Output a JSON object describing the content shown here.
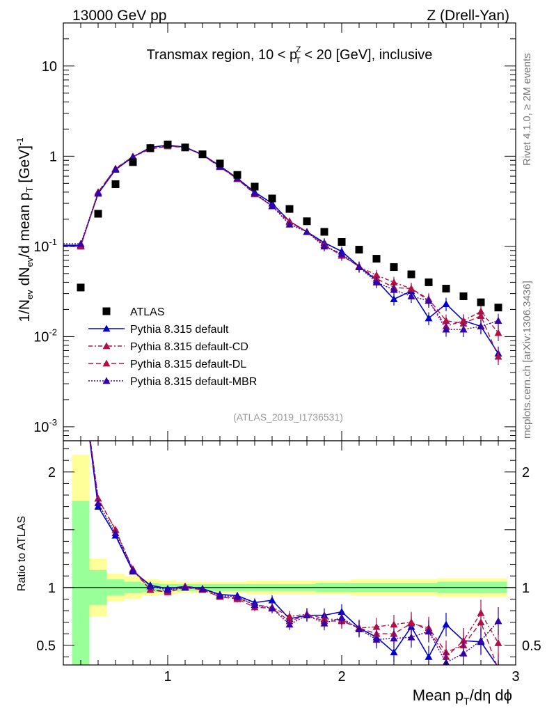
{
  "header": {
    "left": "13000 GeV pp",
    "right": "Z (Drell-Yan)"
  },
  "side_labels": {
    "rivet": "Rivet 4.1.0, ≥ 2M events",
    "mcplots": "mcplots.cern.ch [arXiv:1306.3436]"
  },
  "colors": {
    "data": "#000000",
    "default": "#0000cc",
    "cd": "#b0104a",
    "dl": "#b0104a",
    "mbr": "#3300aa",
    "band_outer": "#ffff99",
    "band_inner": "#99ff99"
  },
  "chart_data": {
    "type": "scatter",
    "title": "Transmax region, 10 < p_T^Z < 20 [GeV], inclusive",
    "watermark": "(ATLAS_2019_I1736531)",
    "xlabel": "Mean p_T/dη dφ",
    "ylabel_main": "1/N_ev dN_ev/d mean p_T [GeV]^-1",
    "ylabel_ratio": "Ratio to ATLAS",
    "xlim": [
      0.4,
      3.0
    ],
    "ylim_main": [
      0.0007,
      30
    ],
    "ylim_ratio": [
      0.33,
      2.27
    ],
    "x_ticks": [
      "1",
      "2",
      "3"
    ],
    "y_ticks_main": [
      "10",
      "1",
      "10^-1",
      "10^-2",
      "10^-3"
    ],
    "y_ticks_ratio": [
      "2",
      "1",
      "0.5"
    ],
    "x": [
      0.5,
      0.6,
      0.7,
      0.8,
      0.9,
      1.0,
      1.1,
      1.2,
      1.3,
      1.4,
      1.5,
      1.6,
      1.7,
      1.8,
      1.9,
      2.0,
      2.1,
      2.2,
      2.3,
      2.4,
      2.5,
      2.6,
      2.7,
      2.8,
      2.9
    ],
    "legend": [
      "ATLAS",
      "Pythia 8.315 default",
      "Pythia 8.315 default-CD",
      "Pythia 8.315 default-DL",
      "Pythia 8.315 default-MBR"
    ],
    "series": [
      {
        "name": "ATLAS",
        "key": "data",
        "values": [
          0.035,
          0.23,
          0.49,
          0.86,
          1.23,
          1.35,
          1.25,
          1.05,
          0.83,
          0.62,
          0.46,
          0.34,
          0.26,
          0.19,
          0.145,
          0.112,
          0.092,
          0.073,
          0.059,
          0.049,
          0.04,
          0.034,
          0.028,
          0.024,
          0.021
        ]
      },
      {
        "name": "Pythia 8.315 default",
        "key": "default",
        "values": [
          0.103,
          0.385,
          0.71,
          0.98,
          1.25,
          1.33,
          1.26,
          1.04,
          0.78,
          0.57,
          0.4,
          0.3,
          0.19,
          0.145,
          0.11,
          0.088,
          0.06,
          0.042,
          0.026,
          0.032,
          0.016,
          0.023,
          0.015,
          0.013,
          0.0065
        ]
      },
      {
        "name": "Pythia 8.315 default-CD",
        "key": "cd",
        "values": [
          0.1,
          0.4,
          0.73,
          0.99,
          1.2,
          1.3,
          1.26,
          1.03,
          0.76,
          0.56,
          0.38,
          0.28,
          0.19,
          0.145,
          0.105,
          0.08,
          0.06,
          0.048,
          0.04,
          0.034,
          0.025,
          0.013,
          0.015,
          0.019,
          0.011
        ]
      },
      {
        "name": "Pythia 8.315 default-DL",
        "key": "dl",
        "values": [
          0.1,
          0.4,
          0.73,
          0.99,
          1.2,
          1.29,
          1.25,
          1.03,
          0.76,
          0.56,
          0.38,
          0.28,
          0.185,
          0.145,
          0.103,
          0.079,
          0.06,
          0.044,
          0.035,
          0.034,
          0.026,
          0.015,
          0.014,
          0.017,
          0.006
        ]
      },
      {
        "name": "Pythia 8.315 default-MBR",
        "key": "mbr",
        "values": [
          0.107,
          0.39,
          0.72,
          0.99,
          1.24,
          1.33,
          1.25,
          1.04,
          0.77,
          0.57,
          0.39,
          0.28,
          0.175,
          0.145,
          0.1,
          0.083,
          0.059,
          0.04,
          0.033,
          0.028,
          0.025,
          0.012,
          0.012,
          0.013,
          0.015
        ]
      }
    ],
    "ratio": [
      {
        "key": "default",
        "values": [
          2.9,
          1.7,
          1.45,
          1.14,
          1.02,
          0.99,
          1.01,
          0.99,
          0.94,
          0.93,
          0.87,
          0.89,
          0.73,
          0.76,
          0.76,
          0.79,
          0.65,
          0.57,
          0.44,
          0.66,
          0.4,
          0.68,
          0.54,
          0.53,
          0.31
        ]
      },
      {
        "key": "cd",
        "values": [
          2.9,
          1.77,
          1.5,
          1.16,
          0.98,
          0.97,
          1.01,
          0.98,
          0.92,
          0.91,
          0.85,
          0.83,
          0.75,
          0.77,
          0.73,
          0.72,
          0.65,
          0.66,
          0.68,
          0.7,
          0.63,
          0.4,
          0.54,
          0.78,
          0.52
        ]
      },
      {
        "key": "dl",
        "values": [
          2.9,
          1.77,
          1.5,
          1.15,
          0.98,
          0.96,
          1.0,
          0.98,
          0.92,
          0.9,
          0.83,
          0.82,
          0.71,
          0.76,
          0.71,
          0.71,
          0.65,
          0.6,
          0.6,
          0.69,
          0.65,
          0.44,
          0.5,
          0.7,
          0.29
        ]
      },
      {
        "key": "mbr",
        "values": [
          2.9,
          1.73,
          1.47,
          1.15,
          1.01,
          0.98,
          1.0,
          0.99,
          0.93,
          0.92,
          0.85,
          0.82,
          0.68,
          0.76,
          0.69,
          0.74,
          0.64,
          0.55,
          0.56,
          0.57,
          0.62,
          0.35,
          0.43,
          0.54,
          0.71
        ]
      }
    ],
    "band_outer_rel": [
      1.15,
      0.25,
      0.12,
      0.1,
      0.07,
      0.06,
      0.05,
      0.05,
      0.05,
      0.05,
      0.06,
      0.06,
      0.06,
      0.06,
      0.06,
      0.06,
      0.07,
      0.07,
      0.07,
      0.07,
      0.07,
      0.08,
      0.08,
      0.08,
      0.08
    ],
    "band_inner_rel": [
      0.75,
      0.15,
      0.07,
      0.05,
      0.04,
      0.03,
      0.03,
      0.03,
      0.03,
      0.03,
      0.03,
      0.03,
      0.03,
      0.03,
      0.04,
      0.04,
      0.04,
      0.04,
      0.04,
      0.04,
      0.04,
      0.05,
      0.05,
      0.05,
      0.05
    ]
  }
}
